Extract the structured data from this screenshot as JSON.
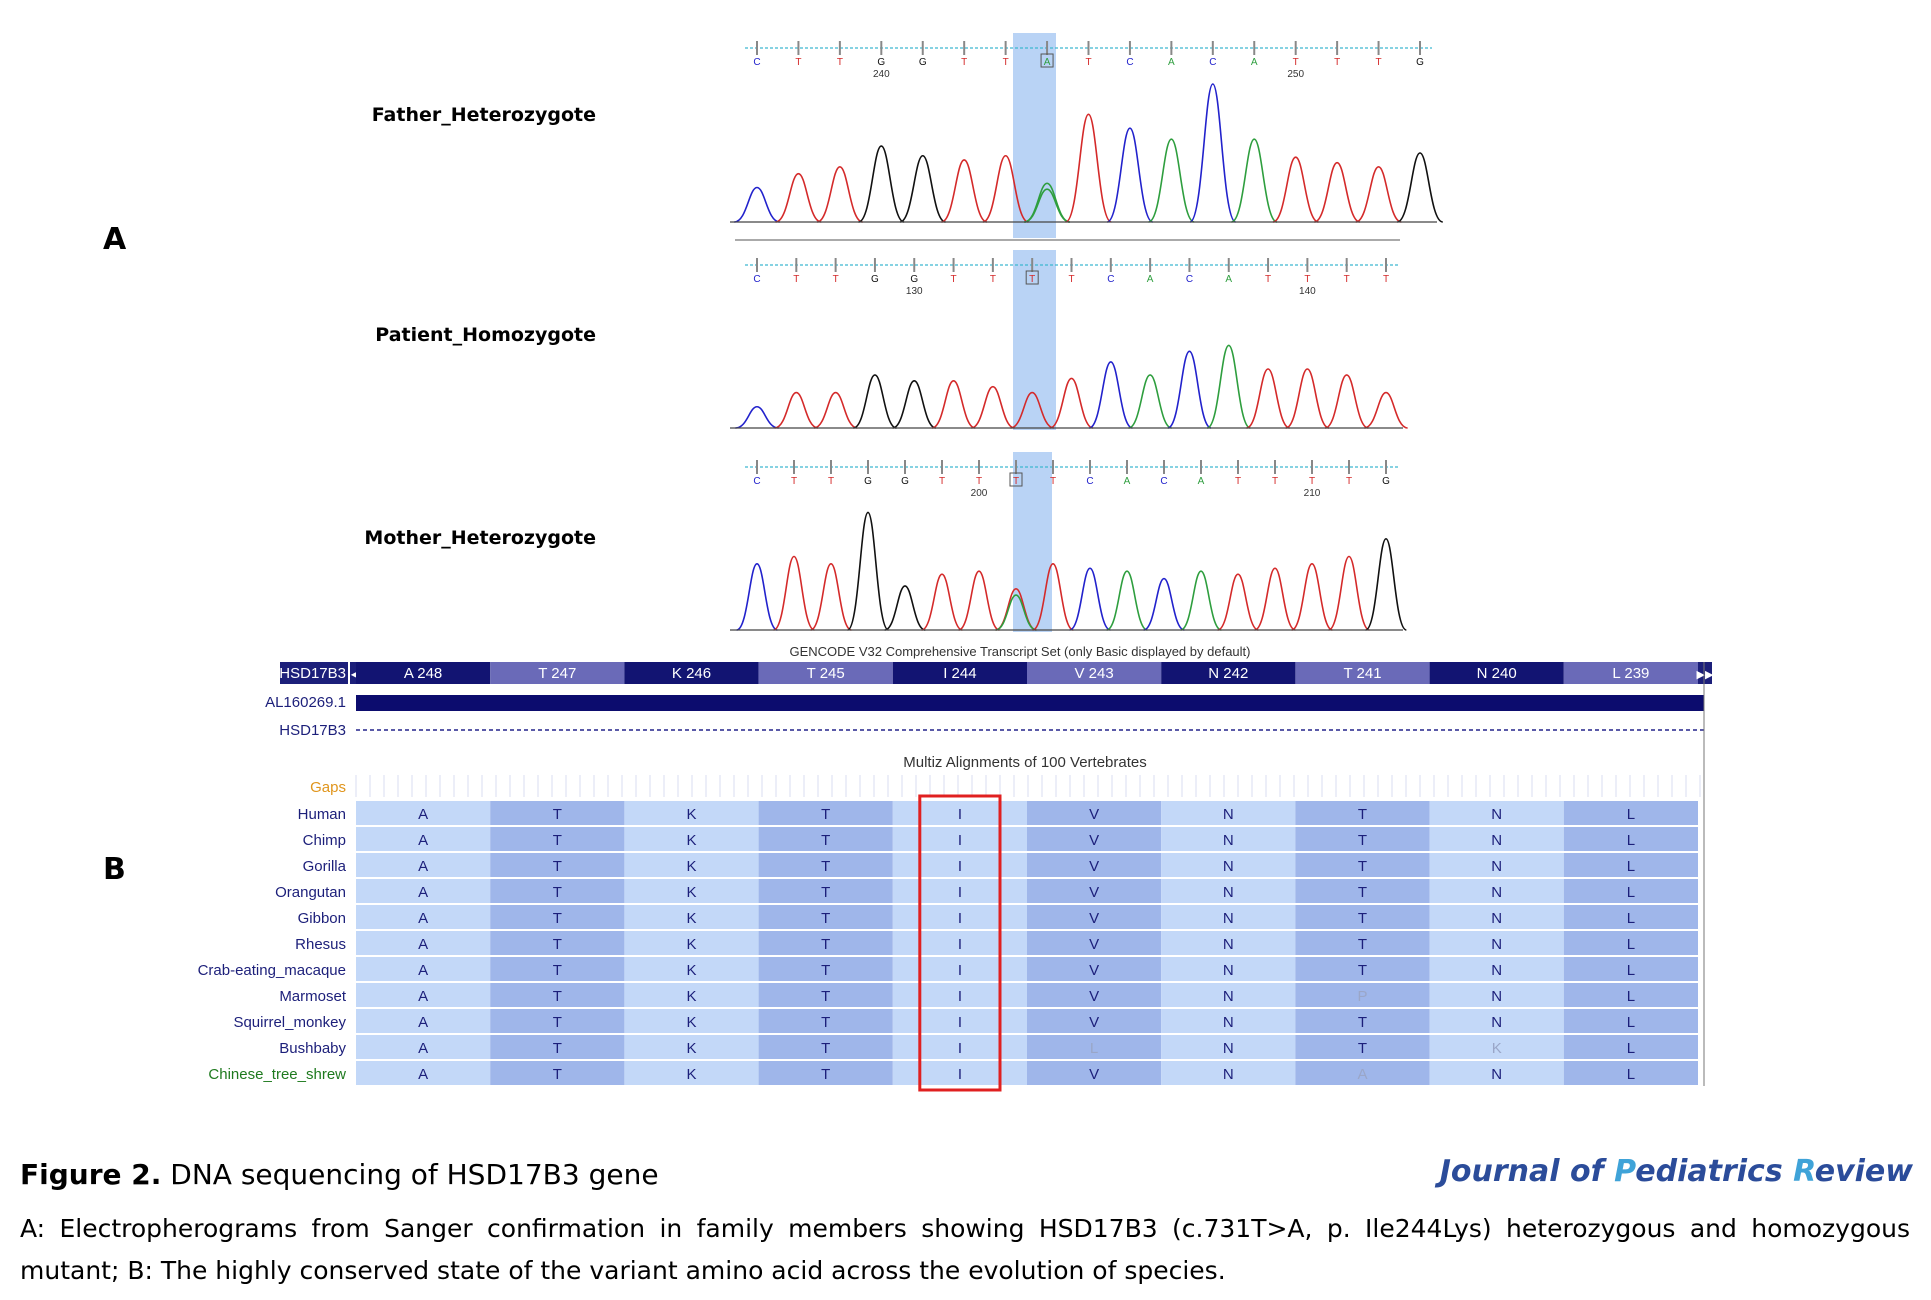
{
  "panel_a": {
    "letter": "A",
    "highlight_color": "#b9d3f5",
    "traces": [
      {
        "label": "Father_Heterozygote",
        "bases": [
          "C",
          "T",
          "T",
          "G",
          "G",
          "T",
          "T",
          "A",
          "T",
          "C",
          "A",
          "C",
          "A",
          "T",
          "T",
          "T",
          "G"
        ],
        "highlight_index": 7,
        "position_labels": [
          {
            "base_index": 3,
            "text": "240"
          },
          {
            "base_index": 13,
            "text": "250"
          }
        ]
      },
      {
        "label": "Patient_Homozygote",
        "bases": [
          "C",
          "T",
          "T",
          "G",
          "G",
          "T",
          "T",
          "T",
          "T",
          "C",
          "A",
          "C",
          "A",
          "T",
          "T",
          "T",
          "T"
        ],
        "highlight_index": 7,
        "position_labels": [
          {
            "base_index": 4,
            "text": "130"
          },
          {
            "base_index": 14,
            "text": "140"
          }
        ]
      },
      {
        "label": "Mother_Heterozygote",
        "bases": [
          "C",
          "T",
          "T",
          "G",
          "G",
          "T",
          "T",
          "T",
          "T",
          "C",
          "A",
          "C",
          "A",
          "T",
          "T",
          "T",
          "T",
          "G"
        ],
        "highlight_index": 7,
        "position_labels": [
          {
            "base_index": 6,
            "text": "200"
          },
          {
            "base_index": 15,
            "text": "210"
          }
        ]
      }
    ],
    "base_colors": {
      "A": "#2e9e3e",
      "C": "#2222cc",
      "G": "#111111",
      "T": "#d42a2a"
    }
  },
  "panel_b": {
    "letter": "B",
    "header_text": "GENCODE V32 Comprehensive Transcript Set (only Basic displayed by default)",
    "gene_label": "HSD17B3",
    "codons": [
      "A 248",
      "T 247",
      "K 246",
      "T 245",
      "I 244",
      "V 243",
      "N 242",
      "T 241",
      "N 240",
      "L 239"
    ],
    "track2_label": "AL160269.1",
    "track3_label": "HSD17B3",
    "multiz_title": "Multiz Alignments of 100 Vertebrates",
    "gaps_label": "Gaps",
    "species": [
      {
        "name": "Human",
        "residues": [
          "A",
          "T",
          "K",
          "T",
          "I",
          "V",
          "N",
          "T",
          "N",
          "L"
        ]
      },
      {
        "name": "Chimp",
        "residues": [
          "A",
          "T",
          "K",
          "T",
          "I",
          "V",
          "N",
          "T",
          "N",
          "L"
        ]
      },
      {
        "name": "Gorilla",
        "residues": [
          "A",
          "T",
          "K",
          "T",
          "I",
          "V",
          "N",
          "T",
          "N",
          "L"
        ]
      },
      {
        "name": "Orangutan",
        "residues": [
          "A",
          "T",
          "K",
          "T",
          "I",
          "V",
          "N",
          "T",
          "N",
          "L"
        ]
      },
      {
        "name": "Gibbon",
        "residues": [
          "A",
          "T",
          "K",
          "T",
          "I",
          "V",
          "N",
          "T",
          "N",
          "L"
        ]
      },
      {
        "name": "Rhesus",
        "residues": [
          "A",
          "T",
          "K",
          "T",
          "I",
          "V",
          "N",
          "T",
          "N",
          "L"
        ]
      },
      {
        "name": "Crab-eating_macaque",
        "residues": [
          "A",
          "T",
          "K",
          "T",
          "I",
          "V",
          "N",
          "T",
          "N",
          "L"
        ]
      },
      {
        "name": "Marmoset",
        "residues": [
          "A",
          "T",
          "K",
          "T",
          "I",
          "V",
          "N",
          "P",
          "N",
          "L"
        ]
      },
      {
        "name": "Squirrel_monkey",
        "residues": [
          "A",
          "T",
          "K",
          "T",
          "I",
          "V",
          "N",
          "T",
          "N",
          "L"
        ]
      },
      {
        "name": "Bushbaby",
        "residues": [
          "A",
          "T",
          "K",
          "T",
          "I",
          "L",
          "N",
          "T",
          "K",
          "L"
        ]
      },
      {
        "name": "Chinese_tree_shrew",
        "residues": [
          "A",
          "T",
          "K",
          "T",
          "I",
          "V",
          "N",
          "A",
          "N",
          "L"
        ]
      }
    ],
    "highlight_column": 4,
    "highlight_box_color": "#e02020"
  },
  "caption": {
    "figure_label": "Figure 2.",
    "title": "DNA sequencing of HSD17B3 gene",
    "journal_j": "J",
    "journal_1": "ournal of ",
    "journal_p": "P",
    "journal_2": "ediatrics ",
    "journal_r": "R",
    "journal_3": "eview",
    "body": "A: Electropherograms from Sanger confirmation in family members showing HSD17B3 (c.731T>A, p. Ile244Lys) heterozygous and homozygous mutant; B: The highly conserved state of the variant amino acid across the evolution of species."
  }
}
